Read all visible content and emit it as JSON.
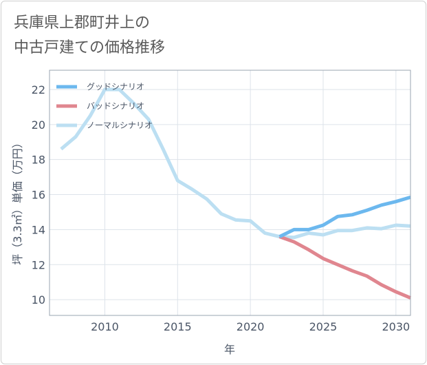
{
  "title": {
    "line1": "兵庫県上郡町井上の",
    "line2": "中古戸建ての価格推移"
  },
  "chart_data": {
    "type": "line",
    "xlabel": "年",
    "ylabel": "坪（3.3㎡）単価（万円）",
    "xlim": [
      2006.2,
      2031
    ],
    "ylim": [
      9.1,
      23.1
    ],
    "xticks": [
      2010,
      2015,
      2020,
      2025,
      2030
    ],
    "yticks": [
      10,
      12,
      14,
      16,
      18,
      20,
      22
    ],
    "grid": true,
    "legend_position": "top-left",
    "series": [
      {
        "name": "グッドシナリオ",
        "color": "#6cb8ee",
        "x": [
          2022,
          2023,
          2024,
          2025,
          2026,
          2027,
          2028,
          2029,
          2030,
          2031
        ],
        "values": [
          13.6,
          14.0,
          14.0,
          14.25,
          14.75,
          14.85,
          15.1,
          15.4,
          15.6,
          15.85
        ]
      },
      {
        "name": "バッドシナリオ",
        "color": "#e0868f",
        "x": [
          2022,
          2023,
          2024,
          2025,
          2026,
          2027,
          2028,
          2029,
          2030,
          2031
        ],
        "values": [
          13.6,
          13.3,
          12.85,
          12.35,
          12.0,
          11.65,
          11.35,
          10.85,
          10.45,
          10.1
        ]
      },
      {
        "name": "ノーマルシナリオ",
        "color": "#bcdff2",
        "x": [
          2007,
          2008,
          2009,
          2010,
          2011,
          2012,
          2013,
          2014,
          2015,
          2016,
          2017,
          2018,
          2019,
          2020,
          2021,
          2022,
          2023,
          2024,
          2025,
          2026,
          2027,
          2028,
          2029,
          2030,
          2031
        ],
        "values": [
          18.6,
          19.3,
          20.5,
          22.0,
          22.0,
          21.2,
          20.3,
          18.6,
          16.8,
          16.3,
          15.75,
          14.9,
          14.55,
          14.5,
          13.8,
          13.6,
          13.55,
          13.8,
          13.7,
          13.95,
          13.95,
          14.1,
          14.05,
          14.25,
          14.2
        ]
      }
    ]
  }
}
